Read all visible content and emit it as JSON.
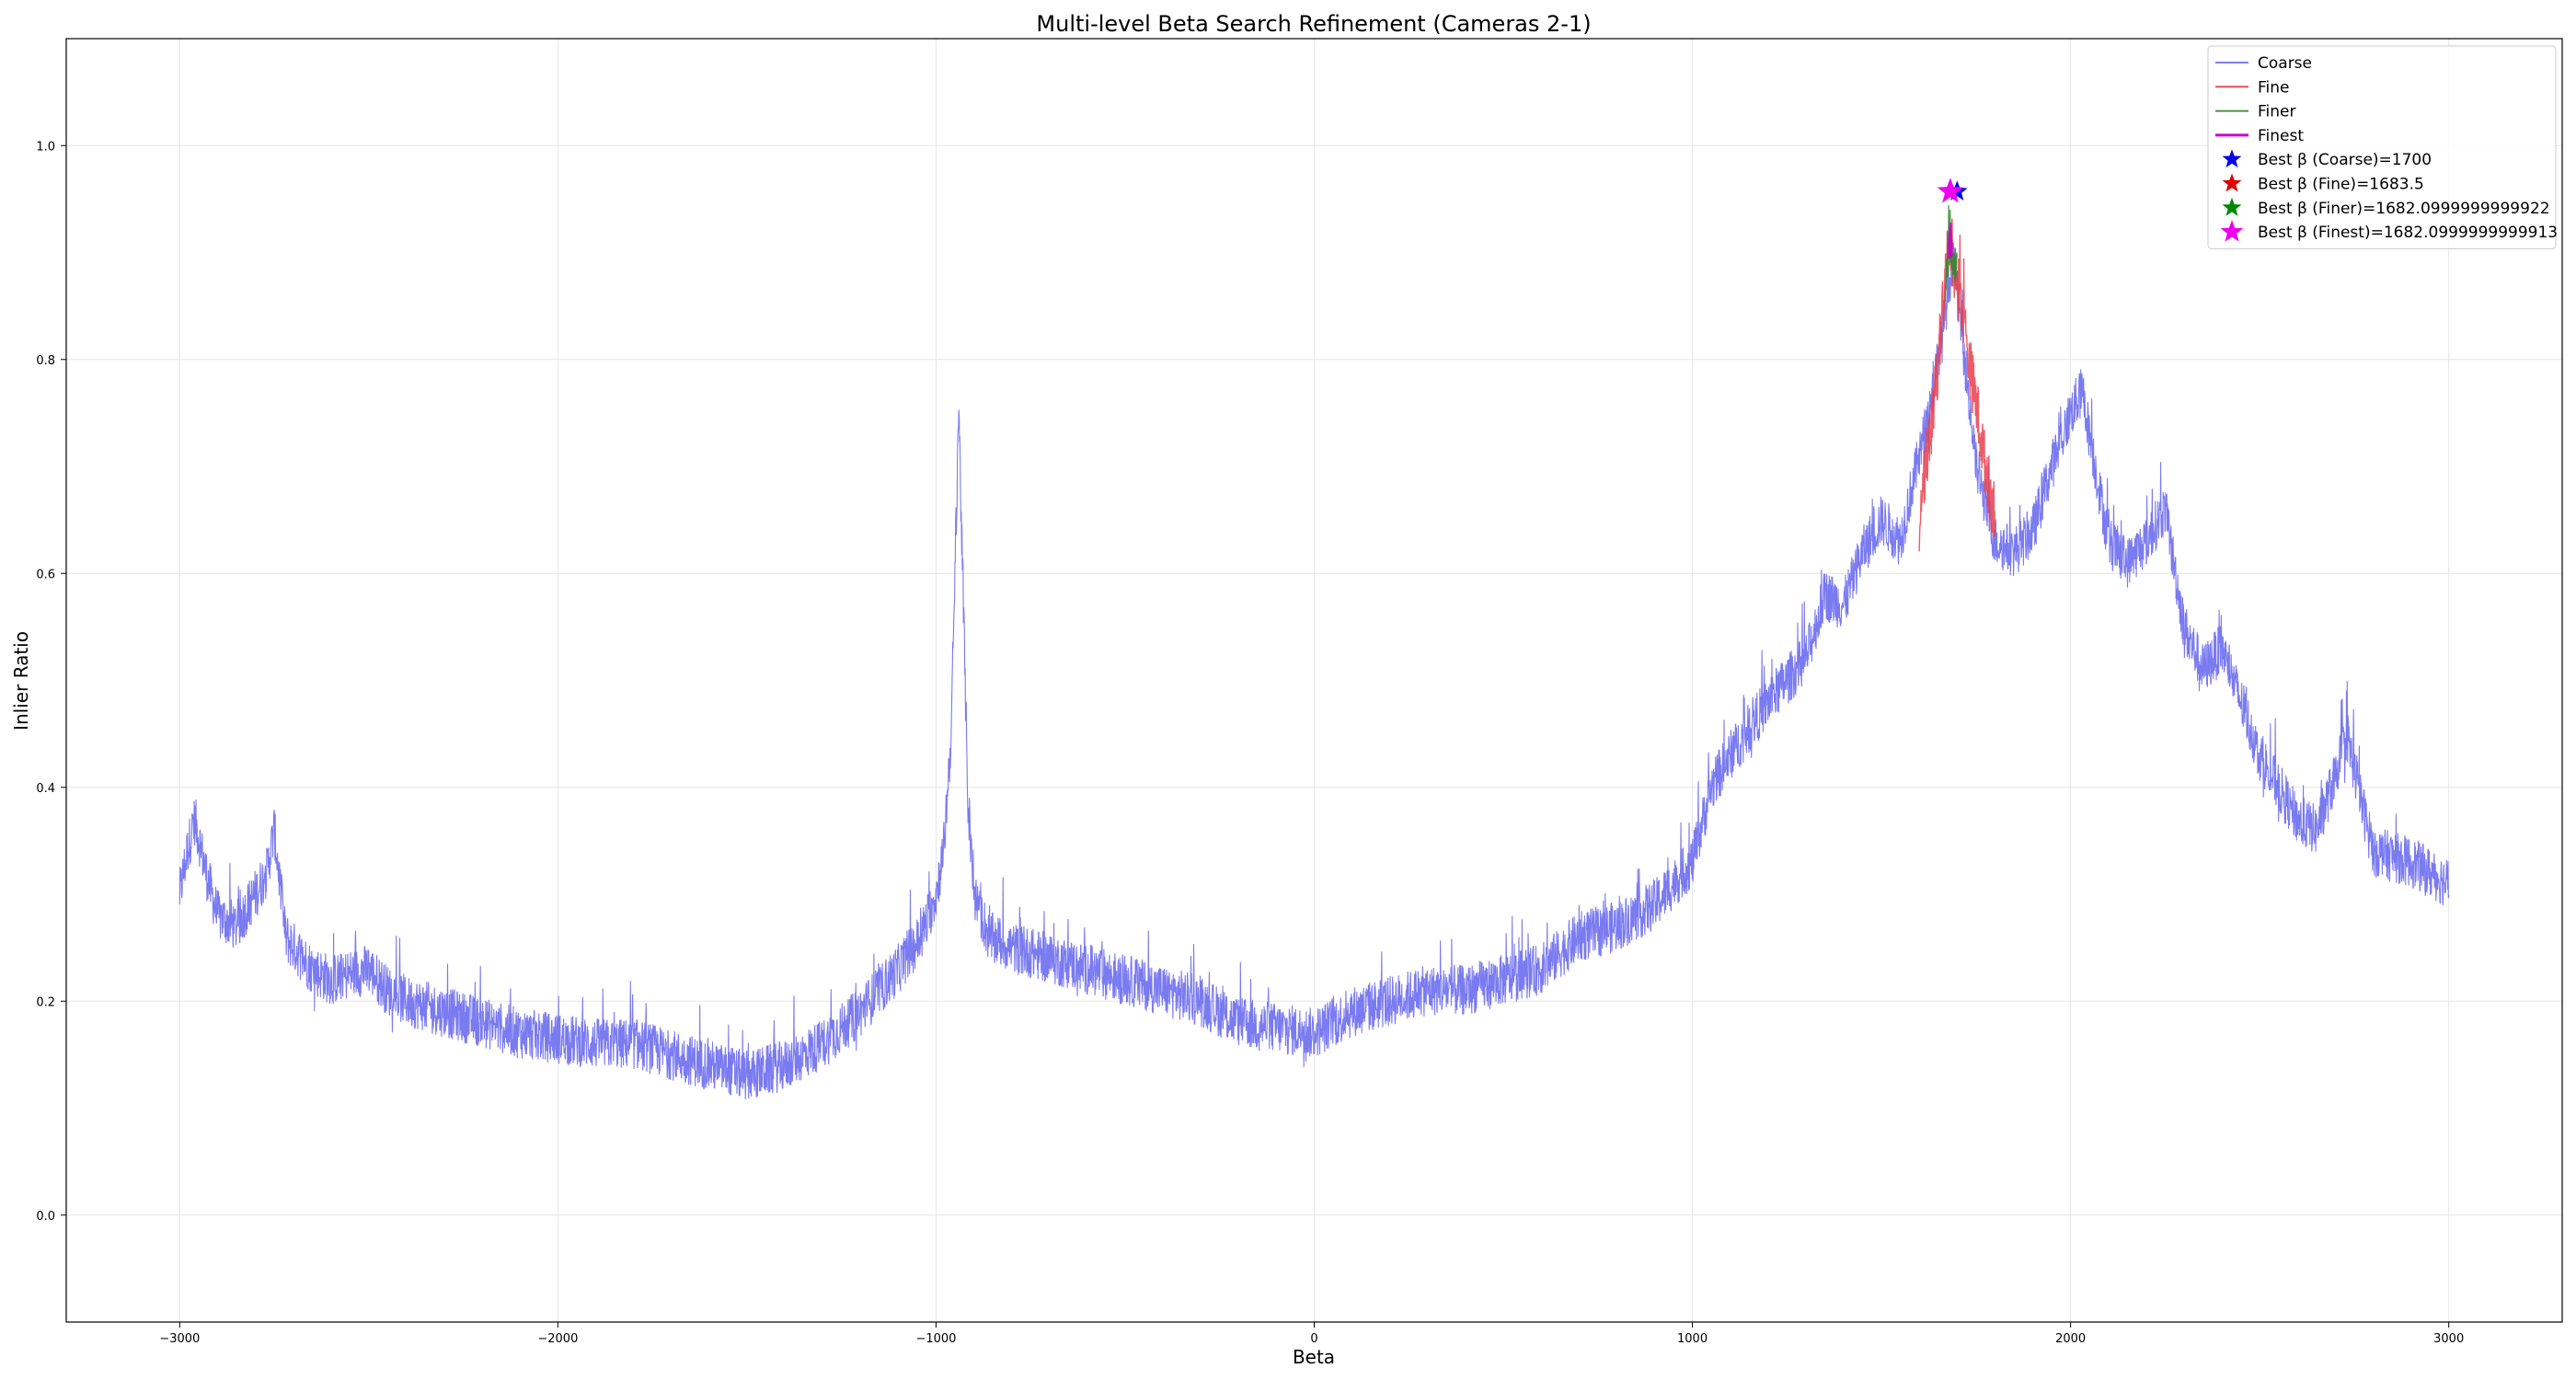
{
  "chart_data": {
    "type": "line",
    "title": "Multi-level Beta Search Refinement (Cameras 2-1)",
    "xlabel": "Beta",
    "ylabel": "Inlier Ratio",
    "xlim": [
      -3300,
      3300
    ],
    "ylim": [
      -0.1,
      1.1
    ],
    "grid": true,
    "legend_position": "top-right",
    "x_ticks": [
      -3000,
      -2000,
      -1000,
      0,
      1000,
      2000,
      3000
    ],
    "x_tick_labels": [
      "−3000",
      "−2000",
      "−1000",
      "0",
      "1000",
      "2000",
      "3000"
    ],
    "y_ticks": [
      0.0,
      0.2,
      0.4,
      0.6,
      0.8,
      1.0
    ],
    "y_tick_labels": [
      "0.0",
      "0.2",
      "0.4",
      "0.6",
      "0.8",
      "1.0"
    ],
    "series": [
      {
        "name": "Coarse",
        "color": "#6b6bef",
        "x_range": [
          -3000,
          3000
        ],
        "noise": 0.024,
        "envelope": [
          [
            -3000,
            0.3
          ],
          [
            -2980,
            0.34
          ],
          [
            -2960,
            0.37
          ],
          [
            -2930,
            0.32
          ],
          [
            -2900,
            0.28
          ],
          [
            -2850,
            0.27
          ],
          [
            -2800,
            0.3
          ],
          [
            -2770,
            0.32
          ],
          [
            -2750,
            0.36
          ],
          [
            -2720,
            0.26
          ],
          [
            -2650,
            0.23
          ],
          [
            -2600,
            0.22
          ],
          [
            -2500,
            0.23
          ],
          [
            -2450,
            0.21
          ],
          [
            -2400,
            0.2
          ],
          [
            -2300,
            0.19
          ],
          [
            -2200,
            0.18
          ],
          [
            -2100,
            0.17
          ],
          [
            -2000,
            0.165
          ],
          [
            -1900,
            0.16
          ],
          [
            -1800,
            0.16
          ],
          [
            -1700,
            0.15
          ],
          [
            -1600,
            0.14
          ],
          [
            -1500,
            0.13
          ],
          [
            -1400,
            0.14
          ],
          [
            -1300,
            0.16
          ],
          [
            -1200,
            0.19
          ],
          [
            -1100,
            0.23
          ],
          [
            -1040,
            0.26
          ],
          [
            -1000,
            0.3
          ],
          [
            -980,
            0.34
          ],
          [
            -960,
            0.45
          ],
          [
            -950,
            0.6
          ],
          [
            -940,
            0.76
          ],
          [
            -930,
            0.6
          ],
          [
            -915,
            0.38
          ],
          [
            -900,
            0.3
          ],
          [
            -860,
            0.26
          ],
          [
            -800,
            0.25
          ],
          [
            -700,
            0.24
          ],
          [
            -600,
            0.23
          ],
          [
            -500,
            0.22
          ],
          [
            -400,
            0.21
          ],
          [
            -300,
            0.2
          ],
          [
            -200,
            0.18
          ],
          [
            -100,
            0.175
          ],
          [
            0,
            0.17
          ],
          [
            100,
            0.19
          ],
          [
            200,
            0.2
          ],
          [
            300,
            0.21
          ],
          [
            400,
            0.21
          ],
          [
            500,
            0.22
          ],
          [
            600,
            0.23
          ],
          [
            700,
            0.26
          ],
          [
            800,
            0.27
          ],
          [
            900,
            0.29
          ],
          [
            1000,
            0.33
          ],
          [
            1050,
            0.4
          ],
          [
            1100,
            0.43
          ],
          [
            1200,
            0.48
          ],
          [
            1300,
            0.52
          ],
          [
            1350,
            0.58
          ],
          [
            1400,
            0.57
          ],
          [
            1450,
            0.62
          ],
          [
            1500,
            0.65
          ],
          [
            1550,
            0.63
          ],
          [
            1580,
            0.68
          ],
          [
            1620,
            0.74
          ],
          [
            1660,
            0.82
          ],
          [
            1690,
            0.9
          ],
          [
            1720,
            0.8
          ],
          [
            1750,
            0.7
          ],
          [
            1800,
            0.63
          ],
          [
            1850,
            0.62
          ],
          [
            1900,
            0.64
          ],
          [
            1950,
            0.7
          ],
          [
            2000,
            0.75
          ],
          [
            2030,
            0.77
          ],
          [
            2060,
            0.71
          ],
          [
            2100,
            0.63
          ],
          [
            2150,
            0.61
          ],
          [
            2200,
            0.63
          ],
          [
            2250,
            0.66
          ],
          [
            2300,
            0.55
          ],
          [
            2350,
            0.51
          ],
          [
            2400,
            0.53
          ],
          [
            2450,
            0.48
          ],
          [
            2500,
            0.43
          ],
          [
            2600,
            0.37
          ],
          [
            2650,
            0.36
          ],
          [
            2700,
            0.41
          ],
          [
            2730,
            0.45
          ],
          [
            2760,
            0.4
          ],
          [
            2800,
            0.34
          ],
          [
            2900,
            0.33
          ],
          [
            3000,
            0.31
          ]
        ]
      },
      {
        "name": "Fine",
        "color": "#e8404e",
        "x_range": [
          1600,
          1800
        ],
        "noise": 0.03,
        "envelope": [
          [
            1600,
            0.66
          ],
          [
            1620,
            0.71
          ],
          [
            1640,
            0.76
          ],
          [
            1660,
            0.84
          ],
          [
            1675,
            0.9
          ],
          [
            1684,
            0.91
          ],
          [
            1695,
            0.88
          ],
          [
            1710,
            0.86
          ],
          [
            1730,
            0.8
          ],
          [
            1750,
            0.76
          ],
          [
            1770,
            0.71
          ],
          [
            1790,
            0.67
          ],
          [
            1800,
            0.66
          ]
        ]
      },
      {
        "name": "Finer",
        "color": "#2e8b2e",
        "x_range": [
          1668,
          1700
        ],
        "noise": 0.02,
        "envelope": [
          [
            1668,
            0.86
          ],
          [
            1682,
            0.91
          ],
          [
            1700,
            0.88
          ]
        ]
      },
      {
        "name": "Finest",
        "color": "#cc00cc",
        "x_range": [
          1678,
          1686
        ],
        "noise": 0.01,
        "envelope": [
          [
            1678,
            0.9
          ],
          [
            1682,
            0.92
          ],
          [
            1686,
            0.9
          ]
        ]
      }
    ],
    "best_points": [
      {
        "name": "Best β (Coarse)=1700",
        "x": 1700,
        "y": 0.957,
        "color": "#0000ee"
      },
      {
        "name": "Best β (Fine)=1683.5",
        "x": 1683.5,
        "y": 0.957,
        "color": "#dd0000"
      },
      {
        "name": "Best β (Finer)=1682.0999999999922",
        "x": 1682.1,
        "y": 0.957,
        "color": "#008800"
      },
      {
        "name": "Best β (Finest)=1682.0999999999913",
        "x": 1682.1,
        "y": 0.957,
        "color": "#ee00ee"
      }
    ]
  }
}
